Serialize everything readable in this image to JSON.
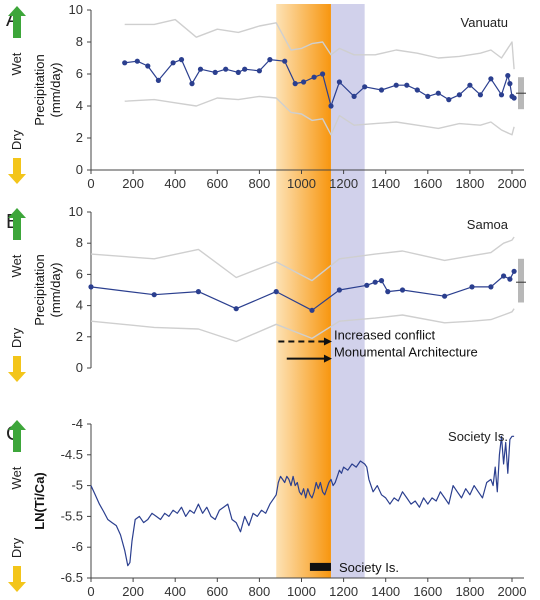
{
  "figure": {
    "panels": [
      "A",
      "B",
      "C"
    ]
  },
  "colors": {
    "series": "#2b3f8f",
    "envelope": "#cfcfcf",
    "band_orange_light": "#fde2b5",
    "band_orange_dark": "#f7960f",
    "band_lavender": "#c9c9e8",
    "wet_arrow": "#3da63a",
    "dry_arrow": "#f3c51a",
    "mean_bar": "#b8b8b8",
    "society_bar": "#111111"
  },
  "labels": {
    "wet": "Wet",
    "dry": "Dry"
  },
  "chart_data": [
    {
      "panel": "A",
      "type": "line",
      "title": "Vanuatu",
      "ylabel": "Precipitation (mm/day)",
      "xlim": [
        0,
        2050
      ],
      "ylim": [
        0,
        10
      ],
      "xticks": [
        0,
        200,
        400,
        600,
        800,
        1000,
        1200,
        1400,
        1600,
        1800,
        2000
      ],
      "yticks": [
        0,
        2,
        4,
        6,
        8,
        10
      ],
      "shaded_ranges": [
        [
          880,
          1140
        ],
        [
          1140,
          1300
        ]
      ],
      "series": [
        {
          "role": "mean",
          "markers": true,
          "x": [
            160,
            220,
            270,
            320,
            390,
            430,
            480,
            520,
            590,
            640,
            700,
            730,
            800,
            850,
            920,
            970,
            1010,
            1060,
            1100,
            1140,
            1180,
            1250,
            1300,
            1380,
            1450,
            1500,
            1550,
            1600,
            1650,
            1700,
            1750,
            1800,
            1850,
            1900,
            1950,
            1980,
            1990,
            2000,
            2010
          ],
          "y": [
            6.7,
            6.8,
            6.5,
            5.6,
            6.7,
            6.9,
            5.4,
            6.3,
            6.1,
            6.3,
            6.1,
            6.3,
            6.2,
            6.9,
            6.8,
            5.4,
            5.5,
            5.8,
            6.0,
            4.0,
            5.5,
            4.6,
            5.2,
            5.0,
            5.3,
            5.3,
            5.0,
            4.6,
            4.8,
            4.4,
            4.7,
            5.3,
            4.7,
            5.7,
            4.7,
            5.9,
            5.4,
            4.6,
            4.5
          ]
        },
        {
          "role": "upper",
          "x": [
            160,
            300,
            400,
            500,
            600,
            700,
            800,
            880,
            950,
            1000,
            1050,
            1100,
            1140,
            1180,
            1250,
            1350,
            1450,
            1550,
            1650,
            1750,
            1850,
            1900,
            1950,
            2000,
            2010
          ],
          "y": [
            9.1,
            9.1,
            9.4,
            8.3,
            8.8,
            8.6,
            9.0,
            9.2,
            7.5,
            7.6,
            7.9,
            8.0,
            7.2,
            7.6,
            7.2,
            7.2,
            7.5,
            7.3,
            7.0,
            7.1,
            7.3,
            7.5,
            7.0,
            8.0,
            6.3
          ]
        },
        {
          "role": "lower",
          "x": [
            160,
            300,
            400,
            500,
            600,
            700,
            800,
            880,
            950,
            1000,
            1050,
            1100,
            1140,
            1180,
            1250,
            1350,
            1450,
            1550,
            1650,
            1750,
            1850,
            1900,
            1950,
            2000,
            2010
          ],
          "y": [
            4.3,
            4.4,
            4.2,
            4.0,
            4.5,
            4.4,
            4.6,
            4.5,
            3.6,
            3.5,
            3.1,
            3.2,
            2.2,
            3.4,
            2.8,
            2.9,
            3.0,
            2.8,
            2.6,
            2.9,
            2.8,
            3.0,
            2.5,
            2.2,
            2.7
          ]
        }
      ],
      "mean_marker": {
        "low": 3.8,
        "high": 5.8,
        "mid": 4.8
      }
    },
    {
      "panel": "B",
      "type": "line",
      "title": "Samoa",
      "ylabel": "Precipitation (mm/day)",
      "xlim": [
        0,
        2050
      ],
      "ylim": [
        0,
        10
      ],
      "xticks": [],
      "yticks": [
        0,
        2,
        4,
        6,
        8,
        10
      ],
      "shaded_ranges": [
        [
          880,
          1140
        ],
        [
          1140,
          1300
        ]
      ],
      "series": [
        {
          "role": "mean",
          "markers": true,
          "x": [
            0,
            300,
            510,
            690,
            880,
            1050,
            1180,
            1310,
            1350,
            1380,
            1410,
            1480,
            1680,
            1810,
            1900,
            1960,
            1990,
            2010
          ],
          "y": [
            5.2,
            4.7,
            4.9,
            3.8,
            4.9,
            3.7,
            5.0,
            5.3,
            5.5,
            5.6,
            4.9,
            5.0,
            4.6,
            5.2,
            5.2,
            5.9,
            5.7,
            6.2
          ]
        },
        {
          "role": "upper",
          "x": [
            0,
            300,
            510,
            690,
            880,
            1050,
            1180,
            1350,
            1480,
            1680,
            1810,
            1900,
            1960,
            2000,
            2010
          ],
          "y": [
            7.3,
            7.0,
            7.6,
            5.8,
            6.8,
            5.6,
            7.0,
            7.3,
            7.5,
            6.9,
            7.2,
            7.4,
            8.0,
            8.2,
            8.4
          ]
        },
        {
          "role": "lower",
          "x": [
            0,
            300,
            510,
            690,
            880,
            1050,
            1180,
            1350,
            1480,
            1680,
            1810,
            1900,
            1960,
            2000,
            2010
          ],
          "y": [
            3.0,
            2.6,
            2.5,
            1.7,
            2.8,
            1.9,
            3.0,
            3.2,
            3.4,
            2.9,
            3.0,
            3.1,
            3.4,
            3.6,
            3.8
          ]
        }
      ],
      "mean_marker": {
        "low": 4.2,
        "high": 7.0,
        "mid": 5.5
      },
      "annotations": [
        {
          "text": "Increased conflict",
          "x_start": 890,
          "x_end": 1140,
          "y": 1.7,
          "style": "dashed"
        },
        {
          "text": "Monumental Architecture",
          "x_start": 930,
          "x_end": 1140,
          "y": 0.6,
          "style": "solid"
        }
      ]
    },
    {
      "panel": "C",
      "type": "line",
      "title": "Society Is.",
      "ylabel": "LN(Ti/Ca)",
      "xlim": [
        0,
        2050
      ],
      "ylim": [
        -6.5,
        -4
      ],
      "xticks": [
        0,
        200,
        400,
        600,
        800,
        1000,
        1200,
        1400,
        1600,
        1800,
        2000
      ],
      "yticks": [
        -6.5,
        -6,
        -5.5,
        -5,
        -4.5,
        -4
      ],
      "shaded_ranges": [
        [
          880,
          1140
        ],
        [
          1140,
          1300
        ]
      ],
      "series": [
        {
          "role": "record",
          "markers": false,
          "x": [
            0,
            20,
            40,
            60,
            80,
            100,
            120,
            140,
            160,
            175,
            185,
            195,
            210,
            230,
            250,
            270,
            290,
            310,
            330,
            350,
            370,
            390,
            410,
            430,
            450,
            470,
            490,
            510,
            530,
            550,
            570,
            590,
            610,
            630,
            650,
            670,
            690,
            710,
            730,
            750,
            770,
            790,
            810,
            830,
            850,
            870,
            880,
            890,
            900,
            910,
            920,
            930,
            940,
            950,
            960,
            970,
            980,
            990,
            1000,
            1010,
            1020,
            1030,
            1040,
            1050,
            1060,
            1070,
            1080,
            1090,
            1100,
            1110,
            1120,
            1130,
            1140,
            1150,
            1160,
            1170,
            1180,
            1190,
            1200,
            1220,
            1240,
            1260,
            1280,
            1300,
            1310,
            1320,
            1340,
            1360,
            1380,
            1400,
            1420,
            1440,
            1460,
            1480,
            1500,
            1520,
            1540,
            1560,
            1580,
            1600,
            1620,
            1640,
            1660,
            1680,
            1700,
            1720,
            1740,
            1760,
            1780,
            1800,
            1820,
            1840,
            1860,
            1880,
            1900,
            1910,
            1920,
            1930,
            1940,
            1950,
            1960,
            1970,
            1980,
            1990,
            2000,
            2010
          ],
          "y": [
            -5.0,
            -5.15,
            -5.3,
            -5.42,
            -5.55,
            -5.6,
            -5.65,
            -5.8,
            -6.05,
            -6.3,
            -6.25,
            -5.9,
            -5.55,
            -5.5,
            -5.6,
            -5.55,
            -5.45,
            -5.5,
            -5.55,
            -5.45,
            -5.5,
            -5.4,
            -5.45,
            -5.35,
            -5.5,
            -5.4,
            -5.45,
            -5.3,
            -5.45,
            -5.35,
            -5.5,
            -5.55,
            -5.4,
            -5.35,
            -5.3,
            -5.55,
            -5.6,
            -5.75,
            -5.5,
            -5.65,
            -5.45,
            -5.5,
            -5.4,
            -5.45,
            -5.3,
            -5.2,
            -5.15,
            -4.95,
            -4.85,
            -4.9,
            -4.95,
            -4.85,
            -4.9,
            -5.0,
            -4.85,
            -5.0,
            -4.95,
            -5.1,
            -5.15,
            -5.05,
            -5.2,
            -5.05,
            -5.15,
            -5.2,
            -5.1,
            -4.95,
            -5.05,
            -4.95,
            -5.1,
            -5.15,
            -5.05,
            -4.95,
            -4.9,
            -5.0,
            -4.95,
            -4.85,
            -4.75,
            -4.8,
            -4.7,
            -4.75,
            -4.65,
            -4.7,
            -4.6,
            -4.65,
            -4.7,
            -4.9,
            -5.1,
            -5.0,
            -5.15,
            -5.2,
            -5.3,
            -5.2,
            -5.25,
            -5.1,
            -5.2,
            -5.3,
            -5.25,
            -5.35,
            -5.2,
            -5.3,
            -5.2,
            -5.25,
            -5.1,
            -5.2,
            -5.3,
            -5.0,
            -5.1,
            -5.2,
            -5.05,
            -5.15,
            -5.0,
            -5.1,
            -5.2,
            -4.95,
            -4.9,
            -5.0,
            -4.7,
            -5.1,
            -4.5,
            -4.2,
            -4.65,
            -4.3,
            -4.8,
            -4.25,
            -4.2,
            -4.2
          ]
        }
      ],
      "annotations": [
        {
          "text": "Society Is.",
          "x_start": 1040,
          "x_end": 1140,
          "y": -6.32,
          "style": "bar"
        }
      ]
    }
  ]
}
